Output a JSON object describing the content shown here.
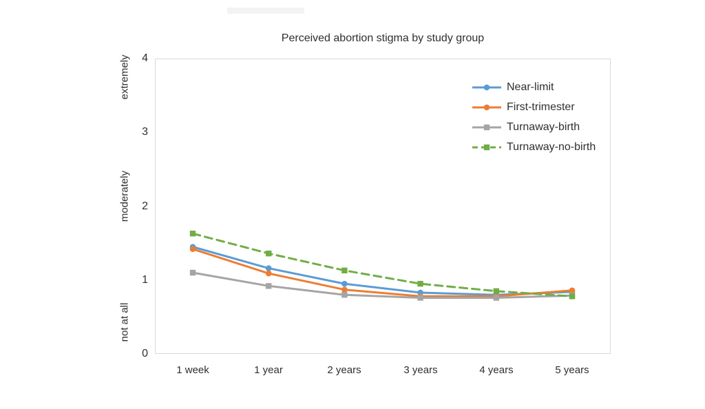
{
  "chart_data": {
    "type": "line",
    "title": "Perceived abortion stigma by study group",
    "categories": [
      "1 week",
      "1 year",
      "2 years",
      "3 years",
      "4 years",
      "5 years"
    ],
    "series": [
      {
        "name": "Near-limit",
        "color": "#5B9BD5",
        "marker": "circle",
        "dash": "solid",
        "values": [
          1.45,
          1.16,
          0.95,
          0.83,
          0.8,
          0.84
        ]
      },
      {
        "name": "First-trimester",
        "color": "#ED7D31",
        "marker": "circle",
        "dash": "solid",
        "values": [
          1.42,
          1.09,
          0.87,
          0.78,
          0.78,
          0.86
        ]
      },
      {
        "name": "Turnaway-birth",
        "color": "#A5A5A5",
        "marker": "square",
        "dash": "solid",
        "values": [
          1.1,
          0.92,
          0.8,
          0.76,
          0.76,
          0.79
        ]
      },
      {
        "name": "Turnaway-no-birth",
        "color": "#70AD47",
        "marker": "square",
        "dash": "dashed",
        "values": [
          1.63,
          1.36,
          1.13,
          0.95,
          0.85,
          0.78
        ]
      }
    ],
    "ylim": [
      0,
      4
    ],
    "ytick_labels": [
      "4",
      "3",
      "2",
      "1",
      "0"
    ],
    "y_category_labels": [
      "extremely",
      "moderately",
      "not at all"
    ],
    "xlabel": "",
    "ylabel": "",
    "grid": "off",
    "legend_position": "top-right-inside",
    "axis_color": "#d9d9d9",
    "text_color": "#2f2f2f",
    "background": "#ffffff"
  }
}
